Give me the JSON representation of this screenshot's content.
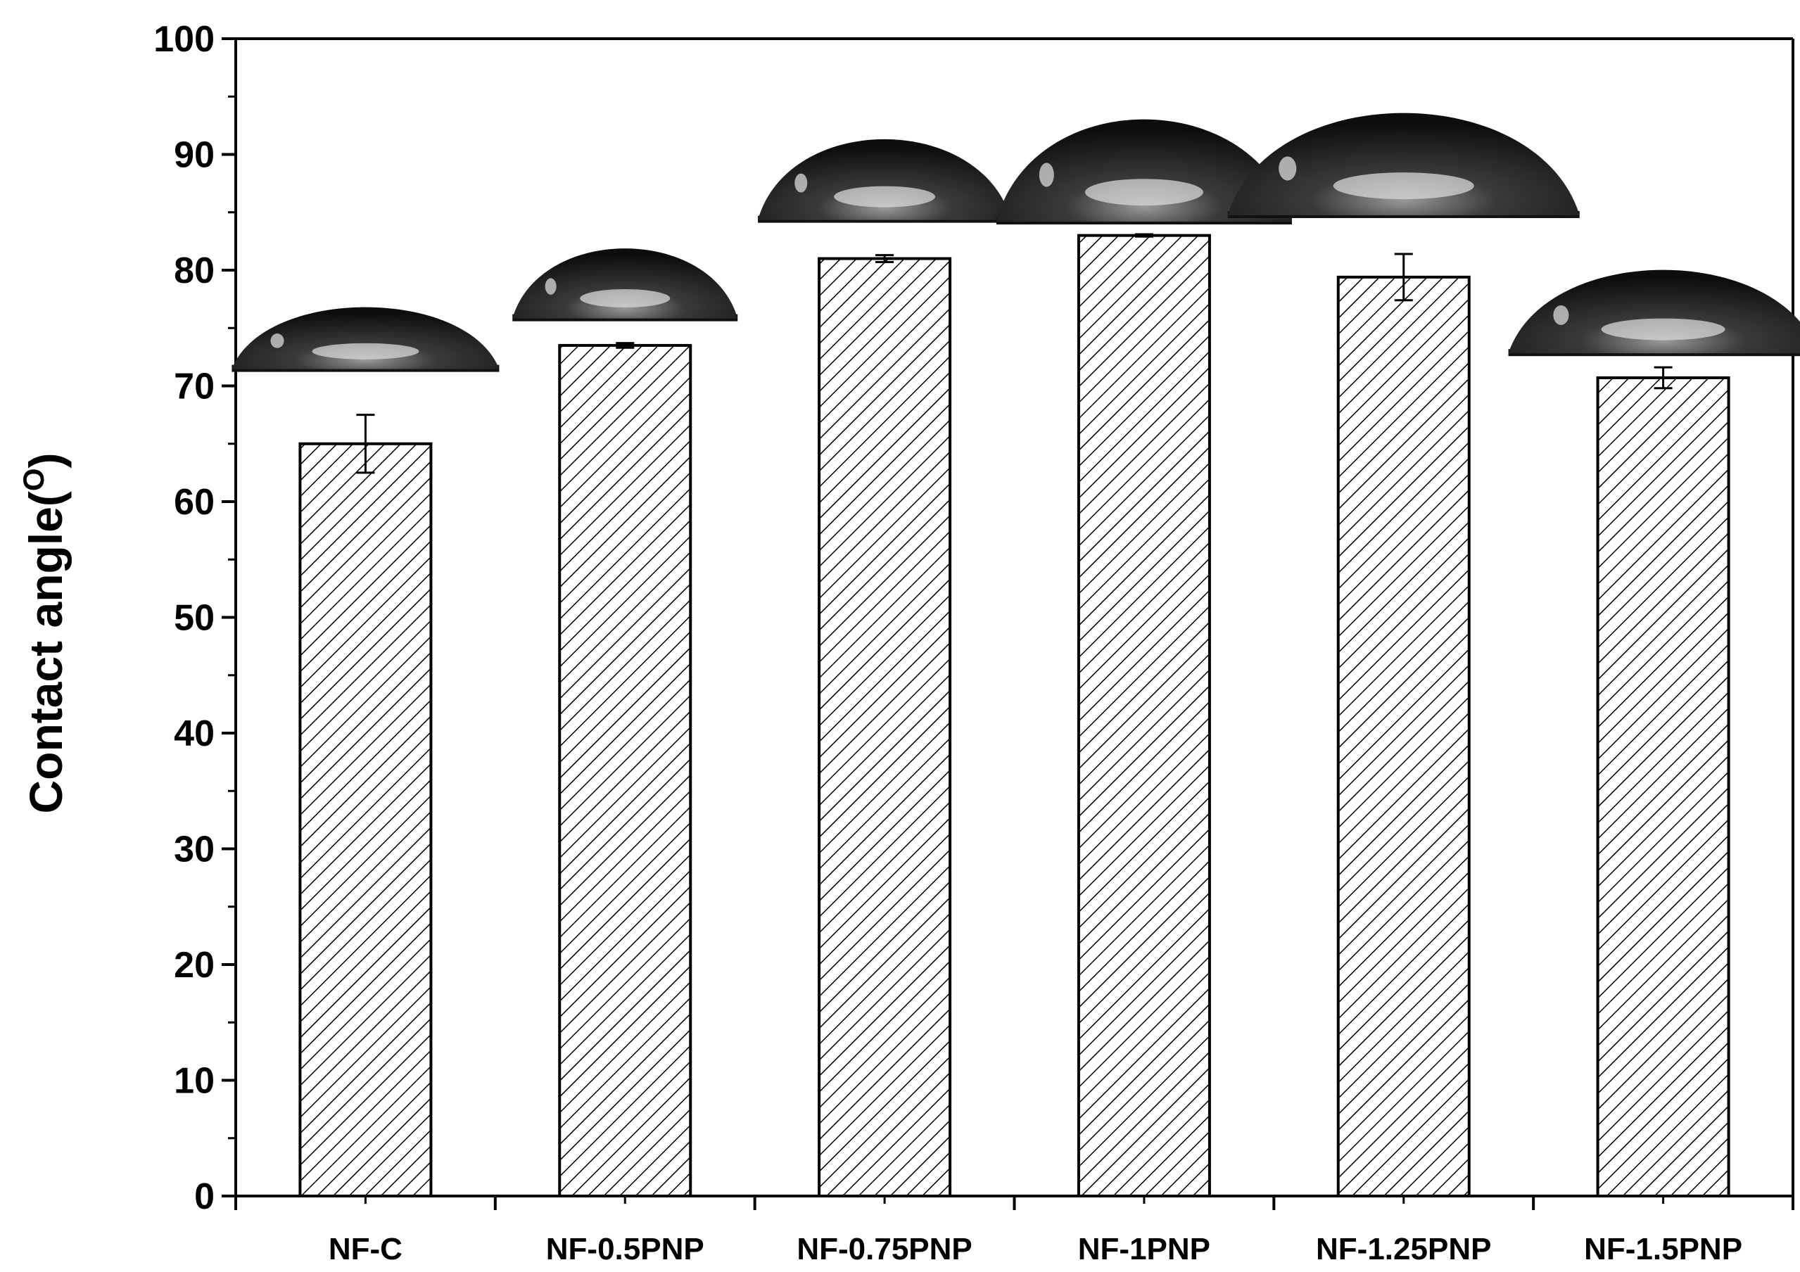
{
  "chart_data": {
    "type": "bar",
    "title": "",
    "xlabel": "",
    "ylabel": "Contact angle(",
    "ylabel_unit_sup": "O",
    "ylabel_close": ")",
    "ylim": [
      0,
      100
    ],
    "yticks": [
      0,
      10,
      20,
      30,
      40,
      50,
      60,
      70,
      80,
      90,
      100
    ],
    "categories": [
      "NF-C",
      "NF-0.5PNP",
      "NF-0.75PNP",
      "NF-1PNP",
      "NF-1.25PNP",
      "NF-1.5PNP"
    ],
    "values": [
      65.0,
      73.5,
      81.0,
      83.0,
      79.4,
      70.7
    ],
    "errors": [
      2.5,
      0.2,
      0.3,
      0.1,
      2.0,
      0.9
    ],
    "bar_pattern": "diagonal-hatch",
    "bar_fill": "#ffffff",
    "bar_stroke": "#000000",
    "inset_images": "water droplet photographs above each bar",
    "grid": false
  }
}
